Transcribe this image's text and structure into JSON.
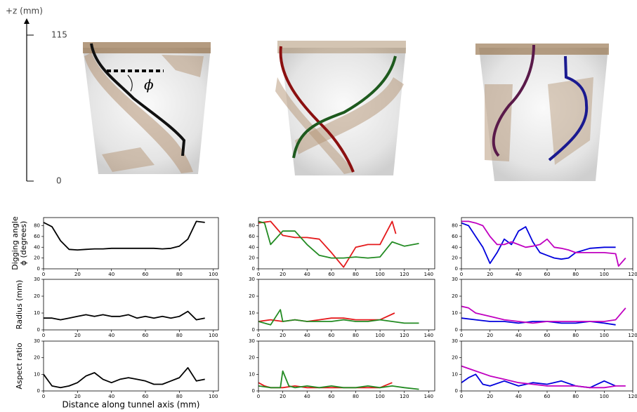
{
  "render_panel": {
    "z_axis_label": "+z (mm)",
    "z_ticks": [
      115,
      0
    ],
    "angle_symbol": "ϕ"
  },
  "chart_data": [
    {
      "type": "line",
      "ylabel": "Digging angle\nϕ (degrees)",
      "xlim": [
        0,
        103
      ],
      "xticks": [
        0,
        20,
        40,
        60,
        80,
        100
      ],
      "ylim": [
        0,
        95
      ],
      "yticks": [
        0,
        20,
        40,
        60,
        80
      ],
      "series": [
        {
          "color": "#000000",
          "x": [
            0,
            5,
            10,
            15,
            20,
            25,
            30,
            35,
            40,
            45,
            50,
            55,
            60,
            65,
            70,
            75,
            80,
            85,
            90,
            95
          ],
          "values": [
            86,
            78,
            52,
            36,
            35,
            36,
            37,
            37,
            38,
            38,
            38,
            38,
            38,
            38,
            37,
            38,
            42,
            55,
            88,
            86
          ]
        }
      ]
    },
    {
      "type": "line",
      "xlim": [
        0,
        145
      ],
      "xticks": [
        0,
        20,
        40,
        60,
        80,
        100,
        120,
        140
      ],
      "ylim": [
        0,
        95
      ],
      "yticks": [
        0,
        20,
        40,
        60,
        80
      ],
      "series": [
        {
          "color": "#e41a1c",
          "x": [
            0,
            10,
            20,
            30,
            40,
            50,
            60,
            70,
            80,
            90,
            100,
            110,
            113
          ],
          "values": [
            85,
            88,
            62,
            58,
            58,
            55,
            30,
            3,
            40,
            45,
            45,
            88,
            65
          ]
        },
        {
          "color": "#238b23",
          "x": [
            0,
            5,
            10,
            20,
            30,
            40,
            50,
            60,
            70,
            80,
            90,
            100,
            110,
            120,
            132
          ],
          "values": [
            88,
            85,
            45,
            70,
            70,
            45,
            25,
            20,
            20,
            22,
            20,
            22,
            50,
            42,
            47
          ]
        }
      ]
    },
    {
      "type": "line",
      "xlim": [
        0,
        120
      ],
      "xticks": [
        0,
        20,
        40,
        60,
        80,
        100,
        120
      ],
      "ylim": [
        0,
        95
      ],
      "yticks": [
        0,
        20,
        40,
        60,
        80
      ],
      "series": [
        {
          "color": "#0000dd",
          "x": [
            0,
            5,
            10,
            15,
            20,
            25,
            30,
            35,
            40,
            45,
            50,
            55,
            60,
            65,
            70,
            75,
            80,
            90,
            100,
            108
          ],
          "values": [
            85,
            80,
            60,
            40,
            10,
            30,
            55,
            45,
            70,
            78,
            50,
            30,
            25,
            20,
            18,
            20,
            30,
            38,
            40,
            40
          ]
        },
        {
          "color": "#c000c0",
          "x": [
            0,
            5,
            10,
            15,
            20,
            25,
            30,
            35,
            40,
            45,
            50,
            55,
            60,
            65,
            70,
            75,
            80,
            90,
            100,
            108,
            110,
            115
          ],
          "values": [
            88,
            88,
            85,
            80,
            60,
            45,
            45,
            50,
            45,
            40,
            42,
            45,
            55,
            40,
            38,
            35,
            30,
            30,
            30,
            28,
            5,
            20
          ]
        }
      ]
    },
    {
      "type": "line",
      "ylabel": "Radius (mm)",
      "xlim": [
        0,
        103
      ],
      "xticks": [
        0,
        20,
        40,
        60,
        80,
        100
      ],
      "ylim": [
        0,
        30
      ],
      "yticks": [
        0,
        10,
        20,
        30
      ],
      "series": [
        {
          "color": "#000000",
          "x": [
            0,
            5,
            10,
            15,
            20,
            25,
            30,
            35,
            40,
            45,
            50,
            55,
            60,
            65,
            70,
            75,
            80,
            85,
            90,
            95
          ],
          "values": [
            7,
            7,
            6,
            7,
            8,
            9,
            8,
            9,
            8,
            8,
            9,
            7,
            8,
            7,
            8,
            7,
            8,
            11,
            6,
            7
          ]
        }
      ]
    },
    {
      "type": "line",
      "xlim": [
        0,
        145
      ],
      "xticks": [
        0,
        20,
        40,
        60,
        80,
        100,
        120,
        140
      ],
      "ylim": [
        0,
        30
      ],
      "yticks": [
        0,
        10,
        20,
        30
      ],
      "series": [
        {
          "color": "#e41a1c",
          "x": [
            0,
            10,
            20,
            30,
            40,
            50,
            60,
            70,
            80,
            90,
            100,
            112
          ],
          "values": [
            5,
            6,
            5,
            6,
            5,
            6,
            7,
            7,
            6,
            6,
            6,
            10
          ]
        },
        {
          "color": "#238b23",
          "x": [
            0,
            10,
            18,
            20,
            30,
            40,
            50,
            60,
            70,
            80,
            90,
            100,
            110,
            120,
            132
          ],
          "values": [
            5,
            3,
            12,
            5,
            6,
            5,
            5,
            5,
            6,
            5,
            5,
            6,
            5,
            4,
            4
          ]
        }
      ]
    },
    {
      "type": "line",
      "xlim": [
        0,
        120
      ],
      "xticks": [
        0,
        20,
        40,
        60,
        80,
        100,
        120
      ],
      "ylim": [
        0,
        30
      ],
      "yticks": [
        0,
        10,
        20,
        30
      ],
      "series": [
        {
          "color": "#0000dd",
          "x": [
            0,
            10,
            20,
            30,
            40,
            50,
            60,
            70,
            80,
            90,
            100,
            108
          ],
          "values": [
            7,
            6,
            5,
            5,
            4,
            5,
            5,
            4,
            4,
            5,
            4,
            3
          ]
        },
        {
          "color": "#c000c0",
          "x": [
            0,
            5,
            10,
            20,
            30,
            40,
            50,
            60,
            70,
            80,
            90,
            100,
            108,
            115
          ],
          "values": [
            14,
            13,
            10,
            8,
            6,
            5,
            4,
            5,
            5,
            5,
            5,
            5,
            6,
            13
          ]
        }
      ]
    },
    {
      "type": "line",
      "ylabel": "Aspect ratio",
      "xlabel": "Distance along tunnel axis (mm)",
      "xlim": [
        0,
        103
      ],
      "xticks": [
        0,
        20,
        40,
        60,
        80,
        100
      ],
      "ylim": [
        0,
        30
      ],
      "yticks": [
        0,
        10,
        20,
        30
      ],
      "series": [
        {
          "color": "#000000",
          "x": [
            0,
            5,
            10,
            15,
            20,
            25,
            30,
            35,
            40,
            45,
            50,
            55,
            60,
            65,
            70,
            75,
            80,
            85,
            90,
            95
          ],
          "values": [
            10,
            3,
            2,
            3,
            5,
            9,
            11,
            7,
            5,
            7,
            8,
            7,
            6,
            4,
            4,
            6,
            8,
            14,
            6,
            7
          ]
        }
      ]
    },
    {
      "type": "line",
      "xlim": [
        0,
        145
      ],
      "xticks": [
        0,
        20,
        40,
        60,
        80,
        100,
        120,
        140
      ],
      "ylim": [
        0,
        30
      ],
      "yticks": [
        0,
        10,
        20,
        30
      ],
      "series": [
        {
          "color": "#e41a1c",
          "x": [
            0,
            5,
            10,
            20,
            30,
            40,
            50,
            60,
            70,
            80,
            90,
            100,
            110
          ],
          "values": [
            5,
            3,
            2,
            2,
            3,
            2,
            2,
            2,
            2,
            2,
            2,
            2,
            5
          ]
        },
        {
          "color": "#238b23",
          "x": [
            0,
            10,
            18,
            20,
            25,
            30,
            40,
            50,
            60,
            70,
            80,
            90,
            100,
            110,
            120,
            132
          ],
          "values": [
            3,
            2,
            2,
            12,
            3,
            2,
            3,
            2,
            3,
            2,
            2,
            3,
            2,
            3,
            2,
            1
          ]
        }
      ]
    },
    {
      "type": "line",
      "xlim": [
        0,
        120
      ],
      "xticks": [
        0,
        20,
        40,
        60,
        80,
        100,
        120
      ],
      "ylim": [
        0,
        30
      ],
      "yticks": [
        0,
        10,
        20,
        30
      ],
      "series": [
        {
          "color": "#0000dd",
          "x": [
            0,
            5,
            10,
            15,
            20,
            30,
            40,
            50,
            60,
            70,
            80,
            90,
            100,
            108
          ],
          "values": [
            5,
            8,
            10,
            4,
            3,
            6,
            3,
            5,
            4,
            6,
            3,
            2,
            6,
            3
          ]
        },
        {
          "color": "#c000c0",
          "x": [
            0,
            10,
            20,
            30,
            40,
            50,
            60,
            70,
            80,
            90,
            100,
            108,
            115
          ],
          "values": [
            15,
            12,
            9,
            7,
            5,
            4,
            3,
            3,
            3,
            2,
            2,
            3,
            3
          ]
        }
      ]
    }
  ]
}
